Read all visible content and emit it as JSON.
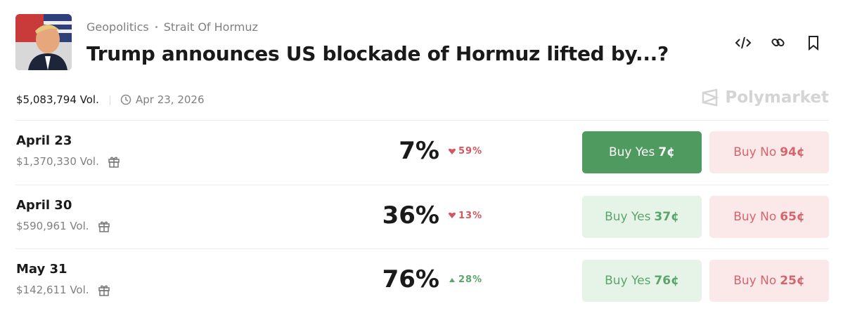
{
  "header": {
    "breadcrumb": [
      "Geopolitics",
      "Strait Of Hormuz"
    ],
    "title": "Trump announces US blockade of Hormuz lifted by...?"
  },
  "meta": {
    "volume": "$5,083,794 Vol.",
    "date": "Apr 23, 2026",
    "brand": "Polymarket"
  },
  "rows": [
    {
      "label": "April 23",
      "volume": "$1,370,330 Vol.",
      "chance": "7%",
      "change": "59%",
      "direction": "down",
      "yes": "Buy Yes",
      "yes_price": "7¢",
      "no": "Buy No",
      "no_price": "94¢",
      "yes_active": true
    },
    {
      "label": "April 30",
      "volume": "$590,961 Vol.",
      "chance": "36%",
      "change": "13%",
      "direction": "down",
      "yes": "Buy Yes",
      "yes_price": "37¢",
      "no": "Buy No",
      "no_price": "65¢",
      "yes_active": false
    },
    {
      "label": "May 31",
      "volume": "$142,611 Vol.",
      "chance": "76%",
      "change": "28%",
      "direction": "up",
      "yes": "Buy Yes",
      "yes_price": "76¢",
      "no": "Buy No",
      "no_price": "25¢",
      "yes_active": false
    }
  ]
}
